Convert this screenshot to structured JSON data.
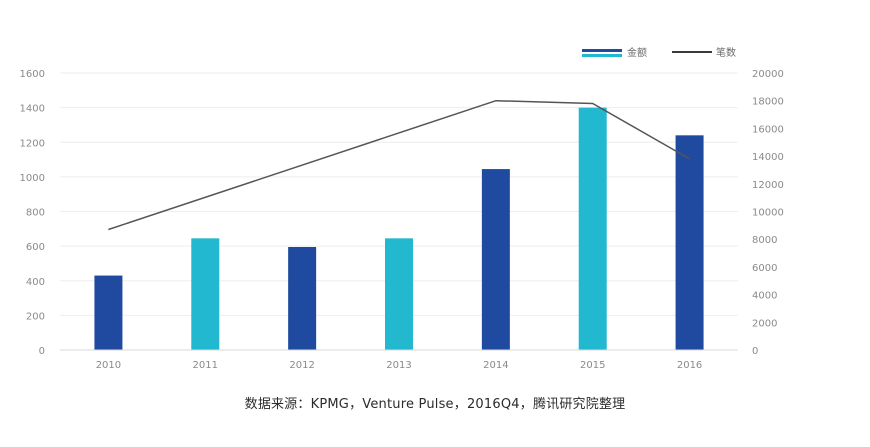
{
  "chart_data": {
    "type": "bar",
    "categories": [
      "2010",
      "2011",
      "2012",
      "2013",
      "2014",
      "2015",
      "2016"
    ],
    "series": [
      {
        "name": "金额",
        "type": "bar",
        "axis": "left",
        "values": [
          430,
          645,
          595,
          645,
          1045,
          1400,
          1240
        ]
      },
      {
        "name": "笔数",
        "type": "line",
        "axis": "right",
        "values": [
          8700,
          null,
          null,
          null,
          18000,
          17800,
          13800
        ]
      }
    ],
    "bar_colors": [
      "#1f4a9f",
      "#22b8cf",
      "#1f4a9f",
      "#22b8cf",
      "#1f4a9f",
      "#22b8cf",
      "#1f4a9f"
    ],
    "line_color": "#555555",
    "y_left": {
      "ticks": [
        "0",
        "200",
        "400",
        "600",
        "800",
        "1000",
        "1200",
        "1400",
        "1600"
      ],
      "ylim": [
        0,
        1600
      ]
    },
    "y_right": {
      "ticks": [
        "0",
        "2000",
        "4000",
        "6000",
        "8000",
        "10000",
        "12000",
        "14000",
        "16000",
        "18000",
        "20000"
      ],
      "ylim": [
        0,
        20000
      ]
    },
    "legend": {
      "position": "top-right",
      "items": [
        "金额",
        "笔数"
      ]
    },
    "grid": true
  },
  "source_note": "数据来源：KPMG，Venture Pulse，2016Q4，腾讯研究院整理"
}
